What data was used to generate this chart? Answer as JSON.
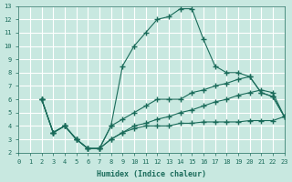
{
  "xlabel": "Humidex (Indice chaleur)",
  "bg_color": "#c8e8e0",
  "line_color": "#1a6b5a",
  "grid_color": "#ffffff",
  "xlim": [
    0,
    23
  ],
  "ylim": [
    2,
    13
  ],
  "xticks": [
    0,
    1,
    2,
    3,
    4,
    5,
    6,
    7,
    8,
    9,
    10,
    11,
    12,
    13,
    14,
    15,
    16,
    17,
    18,
    19,
    20,
    21,
    22,
    23
  ],
  "yticks": [
    2,
    3,
    4,
    5,
    6,
    7,
    8,
    9,
    10,
    11,
    12,
    13
  ],
  "line1_x": [
    2,
    3,
    4,
    5,
    6,
    7,
    8,
    9,
    10,
    11,
    12,
    13,
    14,
    15,
    16,
    17,
    18,
    19,
    20,
    21,
    22,
    23
  ],
  "line1_y": [
    6.0,
    3.5,
    4.0,
    3.0,
    2.3,
    2.3,
    4.0,
    8.5,
    10.0,
    11.0,
    12.0,
    12.2,
    12.8,
    12.8,
    10.5,
    8.5,
    8.0,
    8.0,
    7.7,
    6.5,
    6.2,
    4.7
  ],
  "line2_x": [
    2,
    3,
    4,
    5,
    6,
    7,
    8,
    9,
    10,
    11,
    12,
    13,
    14,
    15,
    16,
    17,
    18,
    19,
    20,
    21,
    22,
    23
  ],
  "line2_y": [
    6.0,
    3.5,
    4.0,
    3.0,
    2.3,
    2.3,
    4.0,
    4.5,
    5.0,
    5.5,
    6.0,
    6.0,
    6.0,
    6.5,
    6.7,
    7.0,
    7.2,
    7.5,
    7.7,
    6.5,
    6.2,
    4.7
  ],
  "line3_x": [
    2,
    3,
    4,
    5,
    6,
    7,
    8,
    9,
    10,
    11,
    12,
    13,
    14,
    15,
    16,
    17,
    18,
    19,
    20,
    21,
    22,
    23
  ],
  "line3_y": [
    6.0,
    3.5,
    4.0,
    3.0,
    2.3,
    2.3,
    3.0,
    3.5,
    4.0,
    4.2,
    4.5,
    4.7,
    5.0,
    5.2,
    5.5,
    5.8,
    6.0,
    6.3,
    6.5,
    6.7,
    6.5,
    4.7
  ],
  "line4_x": [
    2,
    3,
    4,
    5,
    6,
    7,
    8,
    9,
    10,
    11,
    12,
    13,
    14,
    15,
    16,
    17,
    18,
    19,
    20,
    21,
    22,
    23
  ],
  "line4_y": [
    6.0,
    3.5,
    4.0,
    3.0,
    2.3,
    2.3,
    3.0,
    3.5,
    3.8,
    4.0,
    4.0,
    4.0,
    4.2,
    4.2,
    4.3,
    4.3,
    4.3,
    4.3,
    4.4,
    4.4,
    4.4,
    4.7
  ]
}
